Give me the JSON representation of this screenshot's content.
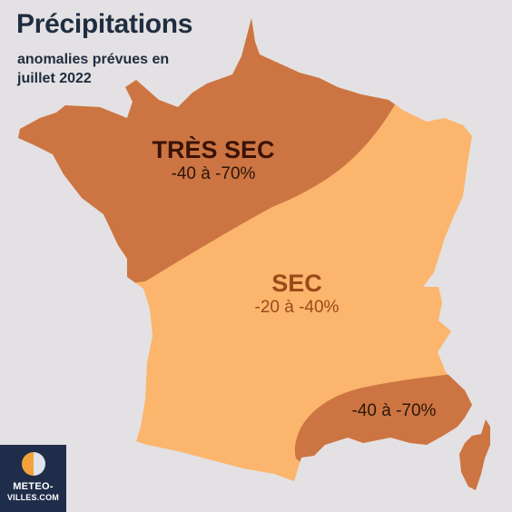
{
  "header": {
    "title": "Précipitations",
    "subtitle_line1": "anomalies prévues en",
    "subtitle_line2": "juillet 2022"
  },
  "zones": {
    "tres_sec": {
      "name": "TRÈS SEC",
      "range": "-40 à -70%",
      "color": "#cc7543"
    },
    "sec": {
      "name": "SEC",
      "range": "-20 à -40%",
      "color": "#fcb56c"
    },
    "southeast": {
      "range": "-40 à -70%",
      "color": "#cc7543"
    }
  },
  "logo": {
    "line1": "METEO-",
    "line2": "VILLES.COM",
    "background": "#1f2d4a",
    "mark_colors": [
      "#f5a23a",
      "#dfe3ea"
    ]
  },
  "background_color": "#e3e1e3"
}
